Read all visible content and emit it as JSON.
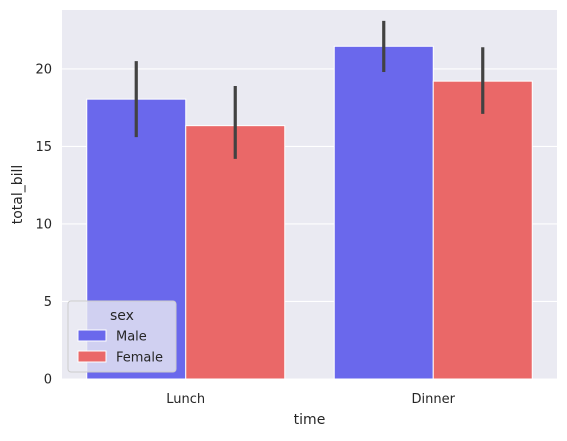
{
  "chart_data": {
    "type": "bar",
    "categories": [
      "Lunch",
      "Dinner"
    ],
    "xlabel": "time",
    "ylabel": "total_bill",
    "ylim": [
      0,
      23.8
    ],
    "yticks": [
      0,
      5,
      10,
      15,
      20
    ],
    "grid": true,
    "legend": {
      "title": "sex",
      "placement": "lower-left"
    },
    "series": [
      {
        "name": "Male",
        "color": "#6a68ec",
        "values": [
          18.05,
          21.46
        ],
        "ci_low": [
          15.6,
          19.8
        ],
        "ci_high": [
          20.5,
          23.1
        ]
      },
      {
        "name": "Female",
        "color": "#ea6868",
        "values": [
          16.34,
          19.21
        ],
        "ci_low": [
          14.2,
          17.1
        ],
        "ci_high": [
          18.9,
          21.4
        ]
      }
    ]
  },
  "colors": {
    "plot_background": "#eaeaf2",
    "grid": "#ffffff",
    "errorbar": "#424242",
    "text": "#262626"
  }
}
